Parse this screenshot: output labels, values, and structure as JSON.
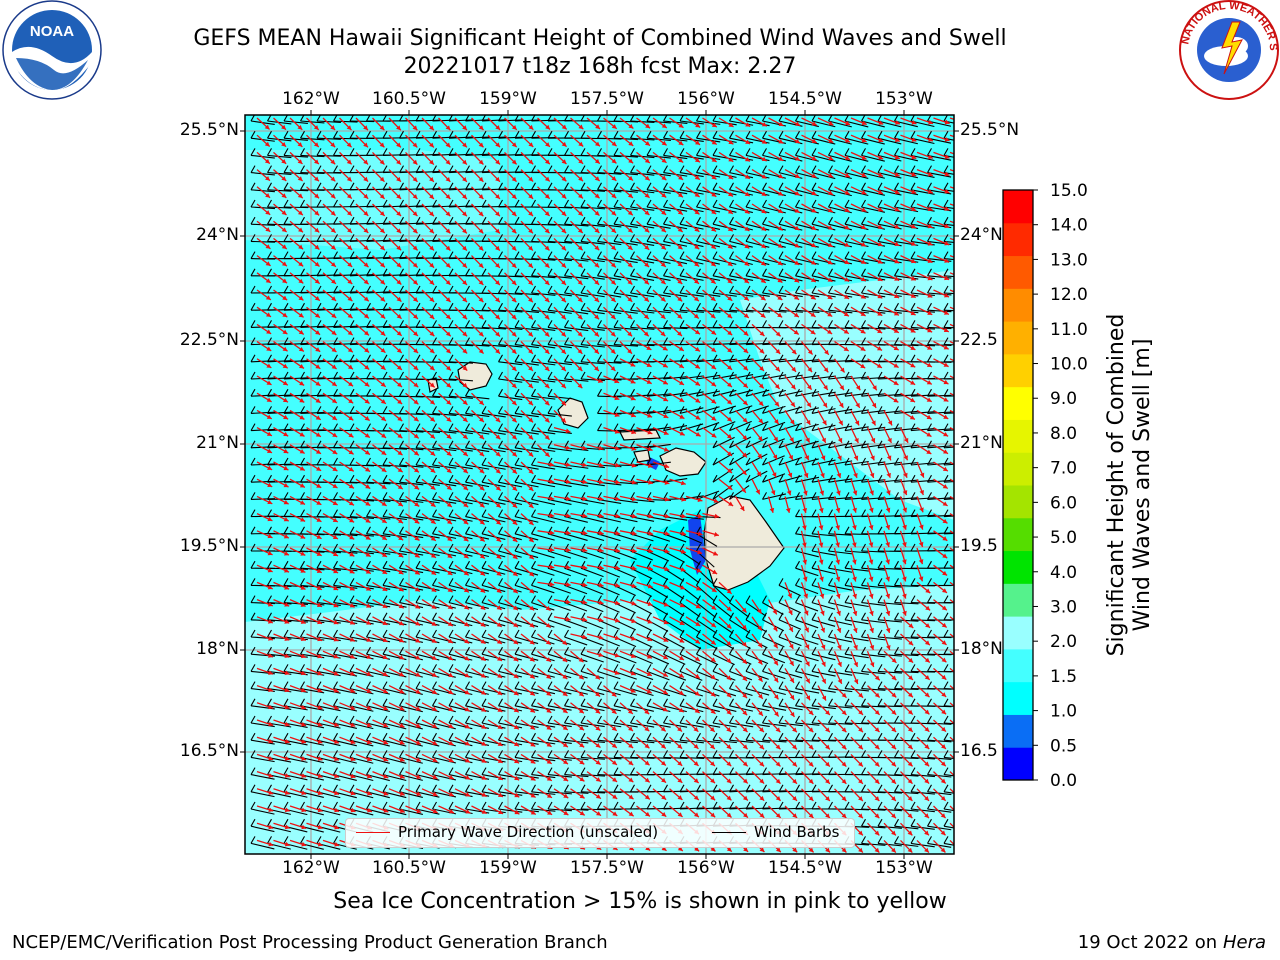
{
  "header": {
    "title_line1": "GEFS MEAN Hawaii Significant Height of Combined Wind Waves and Swell",
    "title_line2": "20221017 t18z 168h fcst   Max: 2.27"
  },
  "logos": {
    "left": {
      "icon": "noaa-logo",
      "text": "NOAA"
    },
    "right": {
      "icon": "nws-logo",
      "text": "NATIONAL WEATHER SERVICE"
    }
  },
  "map": {
    "lon_ticks": [
      "162°W",
      "160.5°W",
      "159°W",
      "157.5°W",
      "156°W",
      "154.5°W",
      "153°W"
    ],
    "lat_ticks": [
      "25.5°N",
      "24°N",
      "22.5°N",
      "21°N",
      "19.5°N",
      "18°N",
      "16.5°N"
    ],
    "lat_ticks_right": [
      "25.5°N",
      "24°N",
      "22.5",
      "21°N",
      "19.5",
      "18°N",
      "16.5"
    ],
    "colors": {
      "ocean_main": "#44ffff",
      "ocean_light": "#99ffff",
      "ocean_low": "#00ffff",
      "land": "#efebdb",
      "wave_arrow": "#ee1111",
      "barb": "#000000",
      "near_shore_dark": "#1144ee"
    }
  },
  "legend": {
    "primary_wave": "Primary Wave Direction (unscaled)",
    "wind_barbs": "Wind Barbs"
  },
  "colorbar": {
    "title": "Significant Height of Combined Wind Waves and Swell [m]",
    "title_line1": "Significant Height of Combined",
    "title_line2": "Wind Waves and Swell [m]",
    "tick_labels": [
      "15.0",
      "14.0",
      "13.0",
      "12.0",
      "11.0",
      "10.0",
      "9.0",
      "8.0",
      "7.0",
      "6.0",
      "5.0",
      "4.0",
      "3.0",
      "2.0",
      "1.5",
      "1.0",
      "0.5",
      "0.0"
    ],
    "levels": [
      0.0,
      0.5,
      1.0,
      1.5,
      2.0,
      3.0,
      4.0,
      5.0,
      6.0,
      7.0,
      8.0,
      9.0,
      10.0,
      11.0,
      12.0,
      13.0,
      14.0,
      15.0
    ],
    "band_colors": [
      "#0000ff",
      "#0a6ef5",
      "#00ffff",
      "#44ffff",
      "#99ffff",
      "#55f28c",
      "#00e400",
      "#55dd00",
      "#a4e400",
      "#ccee00",
      "#e6f500",
      "#ffff00",
      "#ffd000",
      "#ffb000",
      "#ff8c00",
      "#ff5a00",
      "#ff2a00",
      "#ff0000"
    ]
  },
  "footer": {
    "sea_ice_note": "Sea Ice Concentration > 15% is shown in pink to yellow",
    "credit_left": "NCEP/EMC/Verification Post Processing Product Generation Branch",
    "credit_date": "19 Oct 2022 on ",
    "credit_host": "Hera"
  }
}
